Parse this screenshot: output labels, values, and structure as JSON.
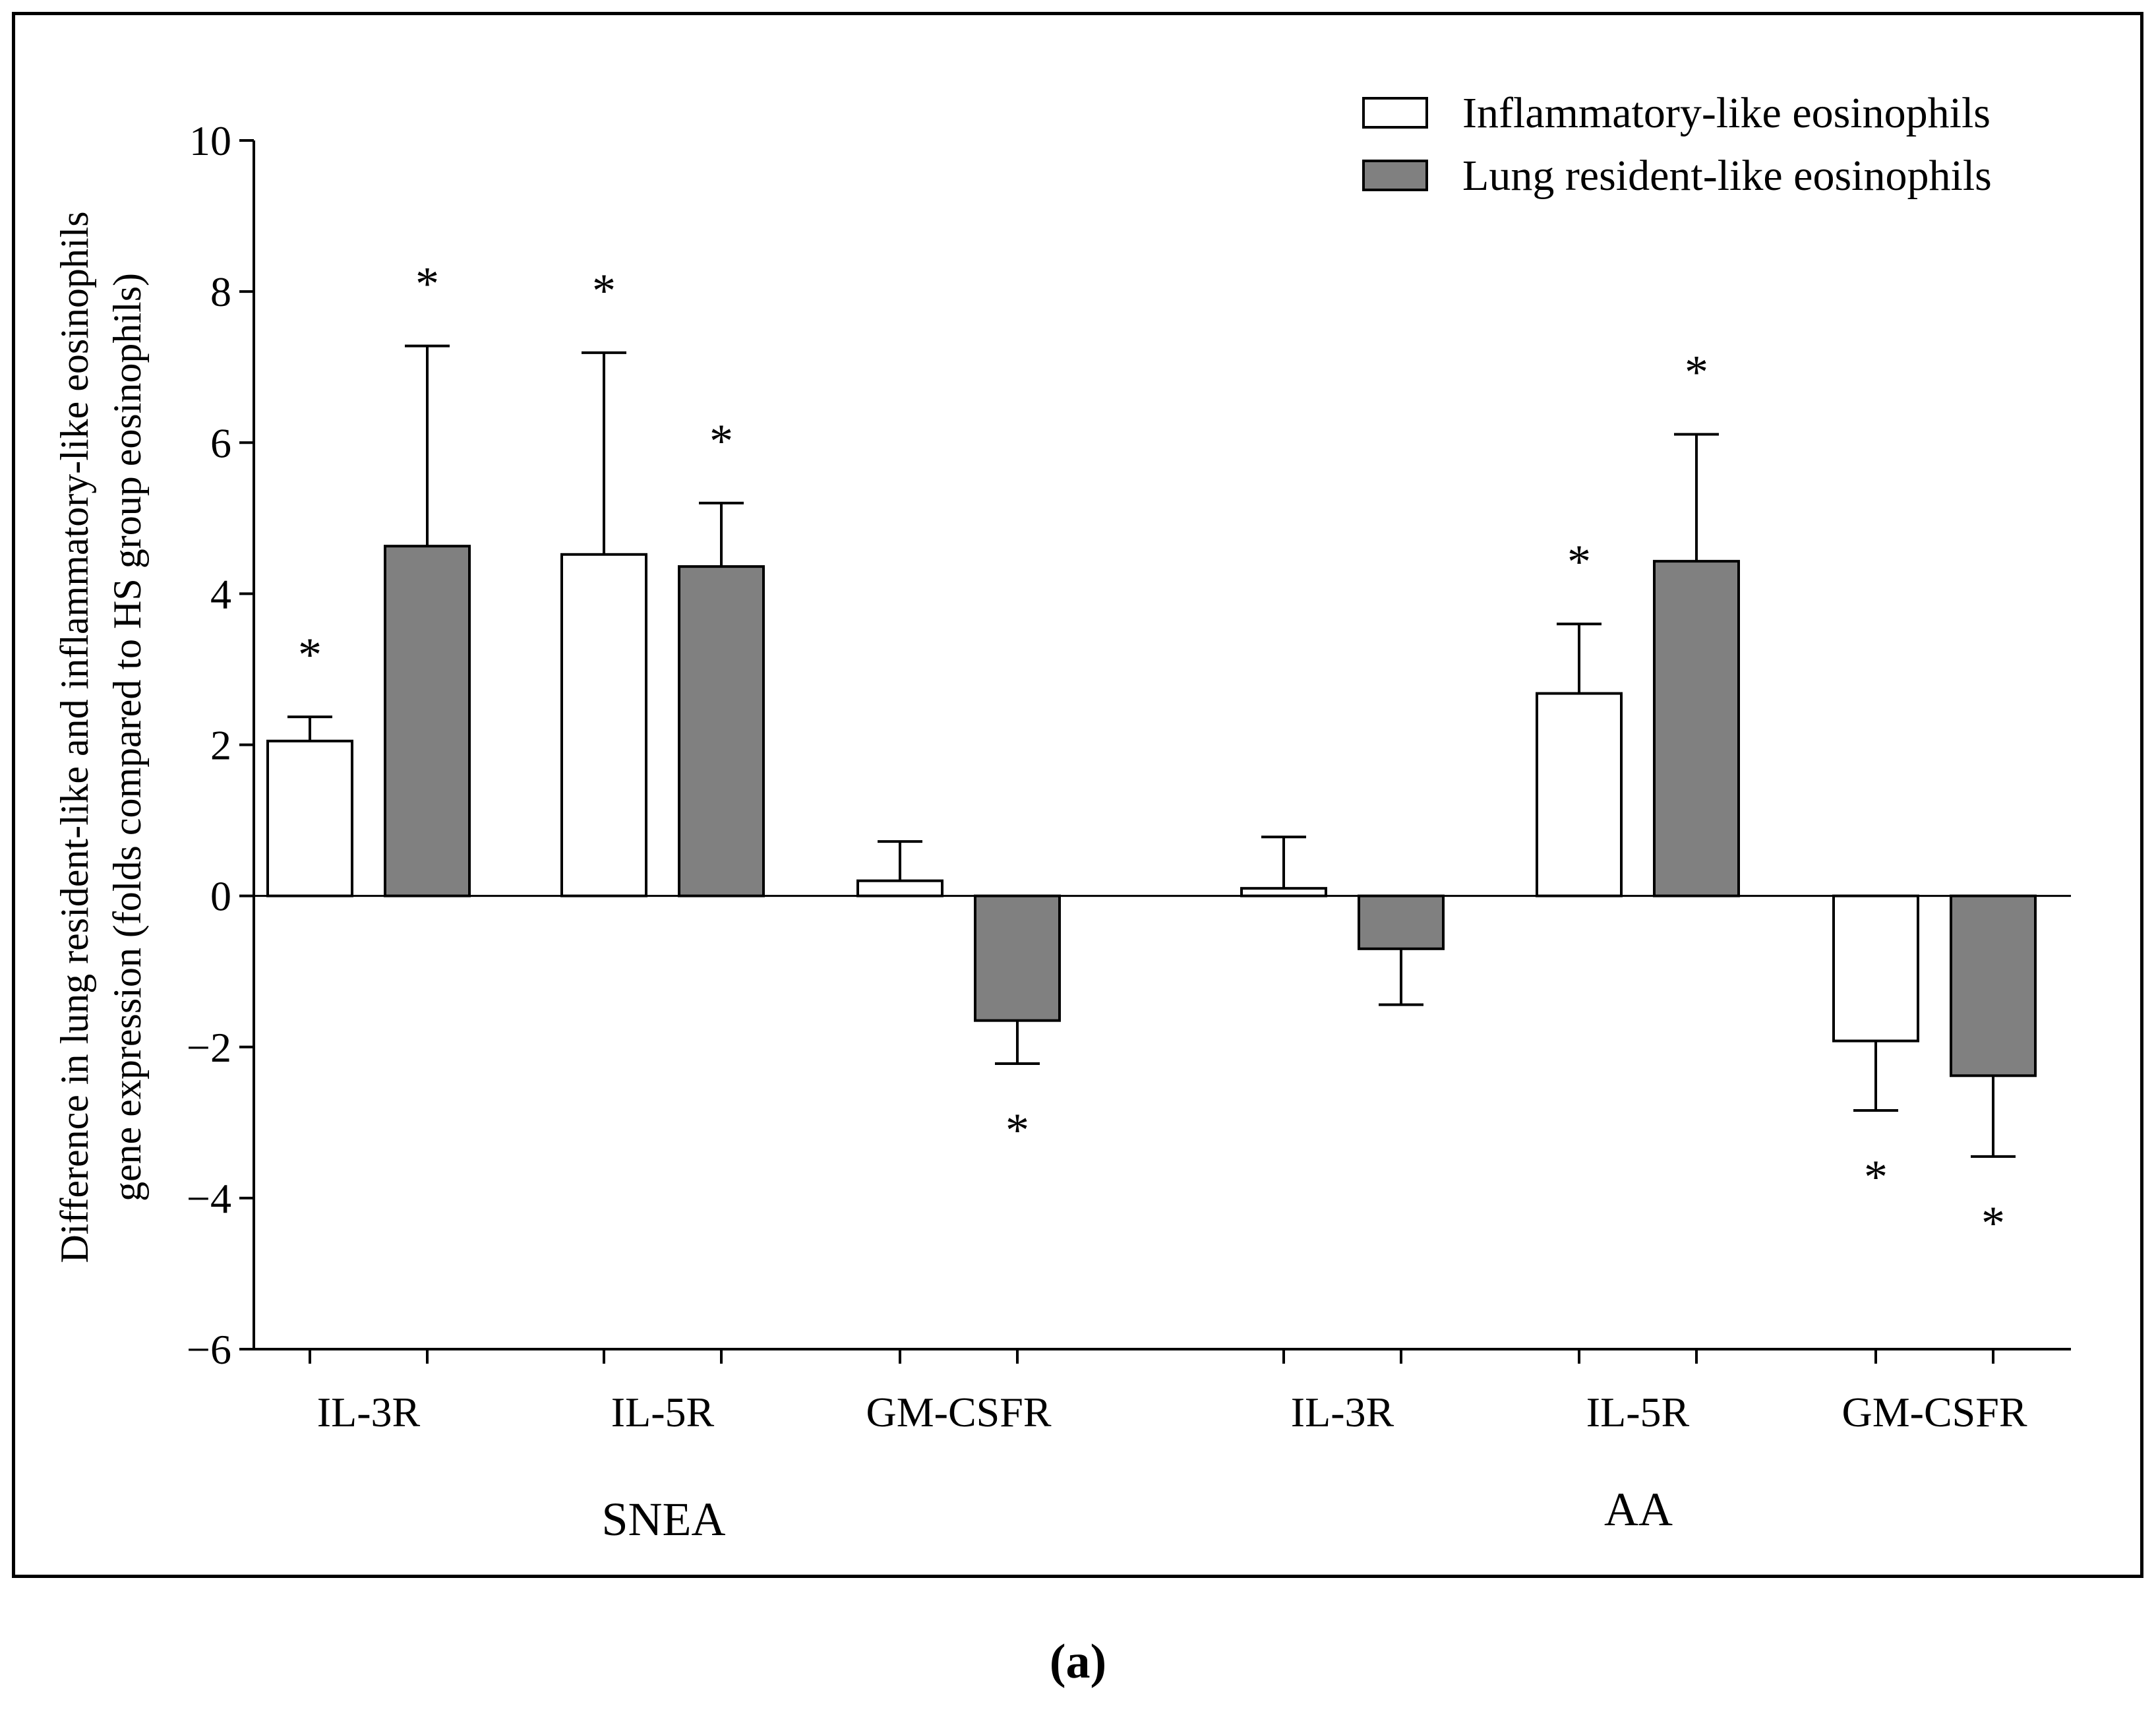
{
  "chart_data": {
    "type": "bar",
    "ylabel_line1": "Difference in lung resident-like and inflammatory-like eosinophils",
    "ylabel_line2": "gene expression (folds compared to HS group eosinophils)",
    "ylim": [
      -6,
      10
    ],
    "yticks": [
      10,
      8,
      6,
      4,
      2,
      0,
      -2,
      -4,
      -6
    ],
    "ytick_labels": [
      "10",
      "8",
      "6",
      "4",
      "2",
      "0",
      "−2",
      "−4",
      "−6"
    ],
    "categories": [
      "IL-3R",
      "IL-5R",
      "GM-CSFR",
      "IL-3R",
      "IL-5R",
      "GM-CSFR"
    ],
    "groups": [
      {
        "label": "SNEA",
        "categories": [
          0,
          1,
          2
        ]
      },
      {
        "label": "AA",
        "categories": [
          3,
          4,
          5
        ]
      }
    ],
    "series": [
      {
        "name": "Inflammatory-like eosinophils",
        "color": "#ffffff",
        "values": [
          2.05,
          4.52,
          0.2,
          0.1,
          2.68,
          -1.92
        ],
        "error": [
          0.32,
          2.67,
          0.52,
          0.68,
          0.92,
          0.92
        ],
        "significant": [
          true,
          true,
          false,
          false,
          true,
          true
        ]
      },
      {
        "name": "Lung resident-like eosinophils",
        "color": "#808080",
        "values": [
          4.63,
          4.36,
          -1.65,
          -0.7,
          4.43,
          -2.38
        ],
        "error": [
          2.65,
          0.84,
          0.57,
          0.74,
          1.68,
          1.07
        ],
        "significant": [
          true,
          true,
          true,
          false,
          true,
          true
        ]
      }
    ],
    "significance_marker": "*",
    "legend": {
      "position": "top-right",
      "labels": [
        "Inflammatory-like eosinophils",
        "Lung resident-like eosinophils"
      ]
    },
    "grid": false
  },
  "panel_label": "(a)"
}
